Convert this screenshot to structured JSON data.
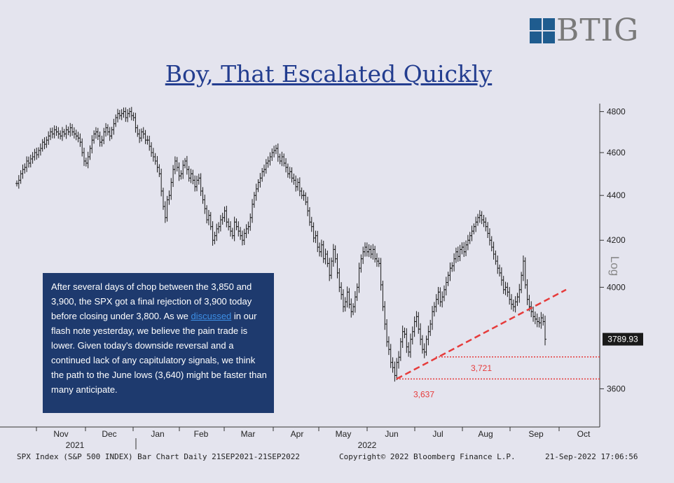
{
  "brand": {
    "logo_text": "BTIG"
  },
  "title": "Boy, That Escalated Quickly",
  "callout": {
    "part1": "After several days of chop between the 3,850 and 3,900, the SPX got a final rejection of 3,900 today before closing under 3,800. As we ",
    "link": "discussed",
    "part2": " in our flash note yesterday, we believe the pain trade is lower. Given today's downside reversal and a continued lack of any capitulatory signals, we think the path to the June lows (3,640) might be faster than many anticipate."
  },
  "footer": {
    "left": "SPX Index (S&P 500 INDEX) Bar Chart  Daily 21SEP2021-21SEP2022",
    "middle": "Copyright© 2022 Bloomberg Finance L.P.",
    "right": "21-Sep-2022 17:06:56"
  },
  "chart_data": {
    "type": "bar",
    "y_axis_label": "Log",
    "y_scale": "log",
    "ylim": [
      3460,
      4840
    ],
    "y_ticks": [
      "3600",
      "4000",
      "4200",
      "4400",
      "4600",
      "4800"
    ],
    "x_tick_labels": [
      "Nov",
      "Dec",
      "Jan",
      "Feb",
      "Mar",
      "Apr",
      "May",
      "Jun",
      "Jul",
      "Aug",
      "Sep",
      "Oct"
    ],
    "year_labels": [
      "2021",
      "2022"
    ],
    "last_price_label": "3789.93",
    "colors": {
      "price": "#1a1a1a",
      "support": "#e63b3b",
      "last_label_bg": "#1a1a1a"
    },
    "series": [
      {
        "values": [
          4455,
          4470,
          4500,
          4520,
          4530,
          4560,
          4550,
          4570,
          4580,
          4600,
          4590,
          4610,
          4620,
          4650,
          4640,
          4660,
          4680,
          4700,
          4690,
          4710,
          4700,
          4690,
          4680,
          4700,
          4690,
          4710,
          4700,
          4720,
          4700,
          4690,
          4680,
          4670,
          4650,
          4600,
          4560,
          4550,
          4580,
          4620,
          4660,
          4690,
          4700,
          4680,
          4650,
          4660,
          4700,
          4720,
          4700,
          4680,
          4710,
          4740,
          4770,
          4790,
          4780,
          4790,
          4800,
          4770,
          4790,
          4800,
          4780,
          4770,
          4720,
          4690,
          4670,
          4700,
          4690,
          4660,
          4660,
          4630,
          4600,
          4580,
          4560,
          4530,
          4500,
          4420,
          4350,
          4300,
          4380,
          4400,
          4460,
          4520,
          4560,
          4530,
          4490,
          4500,
          4540,
          4560,
          4520,
          4480,
          4500,
          4470,
          4440,
          4470,
          4480,
          4420,
          4380,
          4340,
          4290,
          4310,
          4260,
          4200,
          4220,
          4250,
          4260,
          4290,
          4300,
          4330,
          4280,
          4260,
          4240,
          4220,
          4280,
          4260,
          4240,
          4220,
          4200,
          4230,
          4250,
          4260,
          4300,
          4360,
          4400,
          4430,
          4460,
          4480,
          4510,
          4520,
          4550,
          4560,
          4580,
          4600,
          4610,
          4620,
          4580,
          4560,
          4580,
          4550,
          4530,
          4500,
          4510,
          4480,
          4470,
          4440,
          4460,
          4420,
          4400,
          4400,
          4370,
          4330,
          4280,
          4260,
          4210,
          4220,
          4170,
          4150,
          4180,
          4120,
          4140,
          4100,
          4050,
          4110,
          4160,
          4120,
          4060,
          4000,
          3970,
          3920,
          3940,
          3980,
          3930,
          3900,
          3920,
          3960,
          4000,
          4080,
          4120,
          4150,
          4170,
          4150,
          4160,
          4140,
          4160,
          4120,
          4110,
          4100,
          4010,
          3920,
          3850,
          3780,
          3750,
          3700,
          3680,
          3650,
          3700,
          3720,
          3780,
          3820,
          3810,
          3760,
          3740,
          3790,
          3820,
          3860,
          3880,
          3830,
          3790,
          3750,
          3740,
          3790,
          3820,
          3850,
          3900,
          3920,
          3950,
          3980,
          3940,
          3960,
          3990,
          4020,
          4050,
          4080,
          4090,
          4120,
          4150,
          4130,
          4160,
          4170,
          4150,
          4180,
          4200,
          4220,
          4240,
          4260,
          4280,
          4300,
          4310,
          4290,
          4280,
          4260,
          4230,
          4200,
          4170,
          4140,
          4110,
          4080,
          4060,
          4030,
          3990,
          4000,
          3980,
          3950,
          3930,
          3920,
          3940,
          3960,
          3990,
          4050,
          4110,
          4010,
          3950,
          3920,
          3900,
          3880,
          3870,
          3860,
          3855,
          3875,
          3860,
          3790
        ]
      }
    ],
    "support_line": {
      "from_level": 3637,
      "to_level": 3990
    },
    "annotations": [
      {
        "label": "3,721",
        "value": 3721
      },
      {
        "label": "3,637",
        "value": 3637
      }
    ]
  }
}
